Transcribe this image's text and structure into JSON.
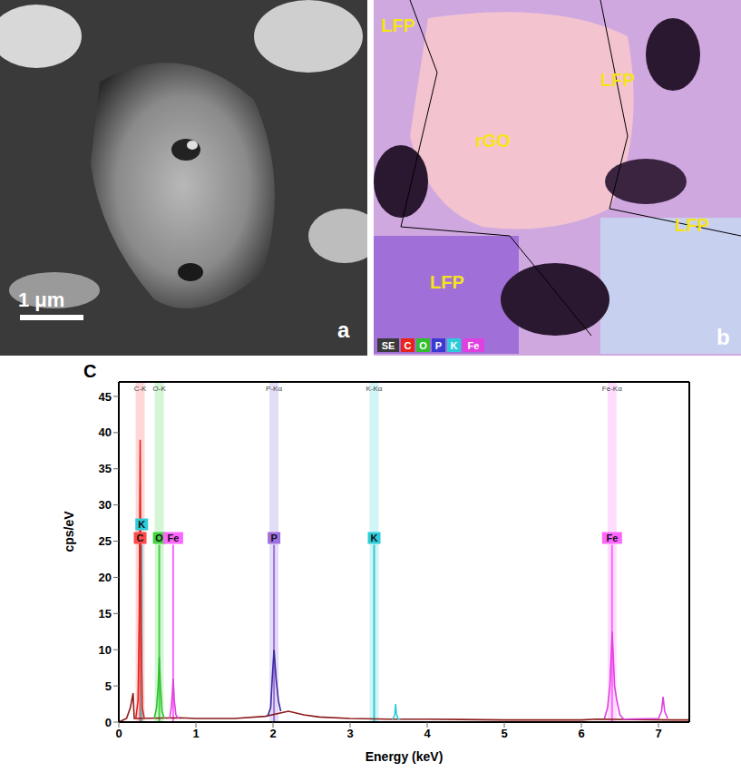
{
  "panels": [
    {
      "letter": "a",
      "scale_bar": "1 μm"
    },
    {
      "letter": "b",
      "labels": [
        "LFP",
        "LFP",
        "rGO",
        "LFP",
        "LFP"
      ],
      "legend": [
        {
          "label": "SE",
          "color": "#3a3a3a"
        },
        {
          "label": "C",
          "color": "#e8231c"
        },
        {
          "label": "O",
          "color": "#2fbf2f"
        },
        {
          "label": "P",
          "color": "#3a3ad0"
        },
        {
          "label": "K",
          "color": "#2ecbd8"
        },
        {
          "label": "Fe",
          "color": "#e040e0"
        }
      ]
    }
  ],
  "chart_data": {
    "type": "line",
    "title": "C",
    "x_label": "Energy (keV)",
    "y_label": "cps/eV",
    "xlim": [
      0,
      7.4
    ],
    "xticks": [
      0,
      1,
      2,
      3,
      4,
      5,
      6,
      7
    ],
    "ylim": [
      0,
      47
    ],
    "yticks": [
      0,
      5,
      10,
      15,
      20,
      25,
      30,
      35,
      40,
      45
    ],
    "grid": true,
    "series": [
      {
        "color": "#8b1a1a",
        "x": [
          0,
          0.1,
          0.15,
          0.185,
          0.2,
          0.8,
          1.0,
          1.5,
          1.9,
          2.2,
          2.4,
          2.6,
          3.0,
          3.5,
          4.0,
          5.0,
          6.0,
          6.2,
          7.2,
          7.4
        ],
        "values": [
          0,
          0.5,
          2,
          4,
          0.5,
          0.6,
          0.5,
          0.5,
          0.8,
          1.5,
          1,
          0.7,
          0.5,
          0.4,
          0.4,
          0.3,
          0.3,
          0.4,
          0.3,
          0.3
        ]
      },
      {
        "name": "C",
        "color": "#e8231c",
        "x": [
          0.22,
          0.25,
          0.265,
          0.277,
          0.29,
          0.305,
          0.33
        ],
        "values": [
          0.5,
          3,
          15,
          39,
          12,
          2,
          0.5
        ]
      },
      {
        "name": "O",
        "color": "#2fbf2f",
        "x": [
          0.46,
          0.49,
          0.51,
          0.525,
          0.54,
          0.56,
          0.59
        ],
        "values": [
          0.5,
          2,
          5,
          9,
          5,
          1.5,
          0.5
        ]
      },
      {
        "name": "Fe",
        "color": "#e040e0",
        "x": [
          0.66,
          0.68,
          0.695,
          0.705,
          0.72,
          0.74,
          0.77
        ],
        "values": [
          0.5,
          2,
          4,
          6,
          3,
          1,
          0.5
        ]
      },
      {
        "name": "P",
        "color": "#3a2aa0",
        "x": [
          1.93,
          1.97,
          1.99,
          2.013,
          2.04,
          2.07,
          2.1
        ],
        "values": [
          0.8,
          2,
          6,
          10,
          6,
          3,
          1.5
        ]
      },
      {
        "name": "K",
        "color": "#2ecbd8",
        "x": [
          3.55,
          3.58,
          3.59,
          3.6,
          3.62,
          3.65
        ],
        "values": [
          0.4,
          1,
          2.5,
          1.2,
          0.5,
          0.4
        ]
      },
      {
        "name": "Fe",
        "color": "#e040e0",
        "x": [
          6.3,
          6.34,
          6.37,
          6.4,
          6.43,
          6.46,
          6.5,
          6.55,
          7.0,
          7.04,
          7.06,
          7.08,
          7.12
        ],
        "values": [
          0.5,
          2,
          5,
          12.5,
          5,
          3,
          1,
          0.4,
          0.5,
          1.5,
          3.5,
          1.5,
          0.5
        ]
      }
    ],
    "markers": [
      {
        "label": "C",
        "x": 0.277,
        "value": 24.5,
        "color": "#ff4a4a"
      },
      {
        "label": "K",
        "x": 0.297,
        "value": 24.5,
        "color": "#2ecbd8"
      },
      {
        "label": "O",
        "x": 0.525,
        "value": 24.5,
        "color": "#3fd43f"
      },
      {
        "label": "Fe",
        "x": 0.705,
        "value": 24.5,
        "color": "#ff66ff"
      },
      {
        "label": "P",
        "x": 2.013,
        "value": 24.5,
        "color": "#a070e0"
      },
      {
        "label": "K",
        "x": 3.312,
        "value": 24.5,
        "color": "#2ecbd8"
      },
      {
        "label": "Fe",
        "x": 6.398,
        "value": 24.5,
        "color": "#ff66ff"
      }
    ],
    "line_labels": [
      {
        "label": "C-K",
        "x": 0.277,
        "color": "#ff4a4a"
      },
      {
        "label": "O-K",
        "x": 0.525,
        "color": "#3fd43f"
      },
      {
        "label": "P-Kα",
        "x": 2.013,
        "color": "#8060d0"
      },
      {
        "label": "K-Kα",
        "x": 3.312,
        "color": "#2ecbd8"
      },
      {
        "label": "Fe-Kα",
        "x": 6.398,
        "color": "#ff66ff"
      }
    ]
  }
}
